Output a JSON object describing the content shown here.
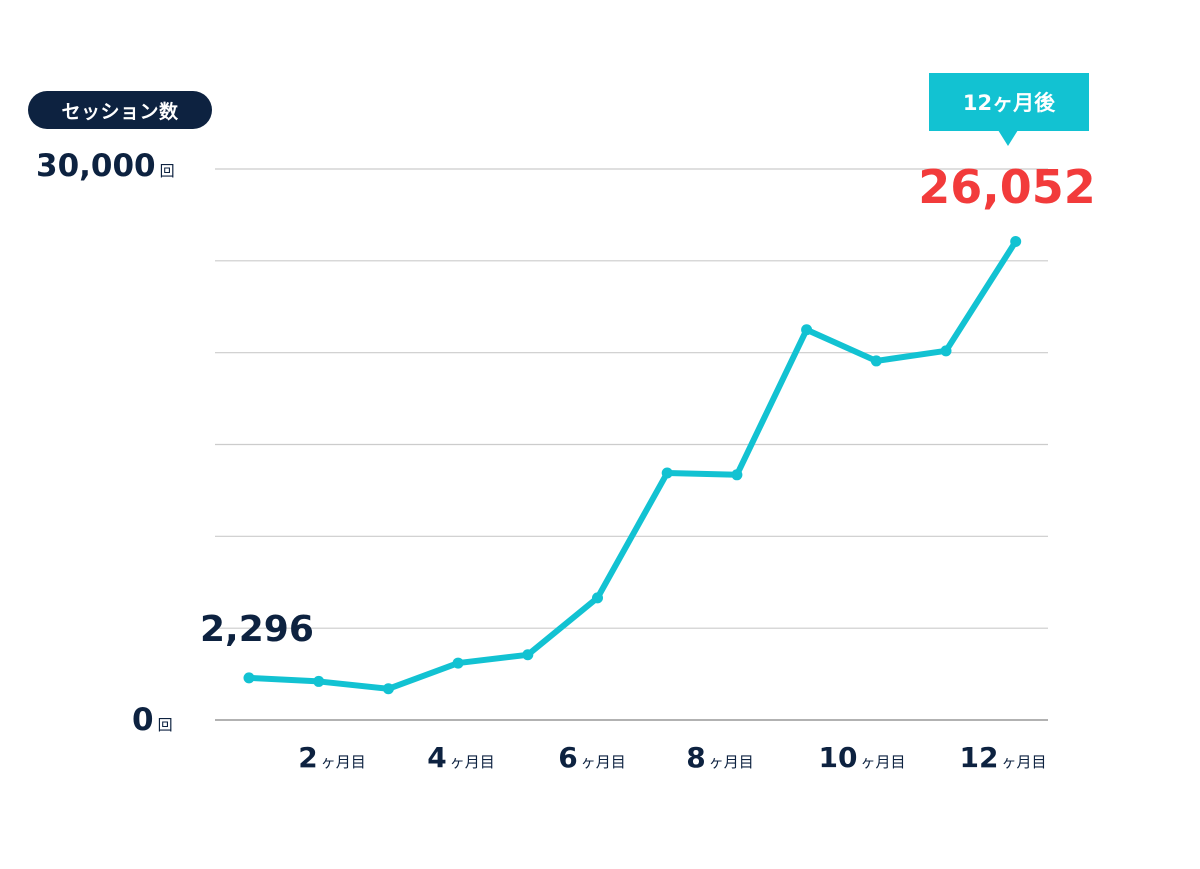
{
  "chart_data": {
    "type": "line",
    "ylabel": "セッション数",
    "ylim": [
      0,
      30000
    ],
    "y_ticks": [
      {
        "value": "30,000",
        "unit": "回"
      },
      {
        "value": "0",
        "unit": "回"
      }
    ],
    "x": [
      1,
      2,
      3,
      4,
      5,
      6,
      7,
      8,
      9,
      10,
      11,
      12
    ],
    "x_tick_labels": [
      {
        "n": "2",
        "u": "ヶ月目"
      },
      {
        "n": "4",
        "u": "ヶ月目"
      },
      {
        "n": "6",
        "u": "ヶ月目"
      },
      {
        "n": "8",
        "u": "ヶ月目"
      },
      {
        "n": "10",
        "u": "ヶ月目"
      },
      {
        "n": "12",
        "u": "ヶ月目"
      }
    ],
    "series": [
      {
        "values": [
          2296,
          2100,
          1700,
          3100,
          3550,
          6650,
          13450,
          13350,
          21250,
          19550,
          20100,
          26052
        ]
      }
    ],
    "annotations": {
      "start_value": "2,296",
      "end_label": "12ヶ月後",
      "end_value": "26,052"
    },
    "grid": true,
    "colors": {
      "line": "#12c2d2",
      "highlight": "#f23b3b",
      "text": "#0d2240",
      "grid": "#cccccc"
    }
  }
}
